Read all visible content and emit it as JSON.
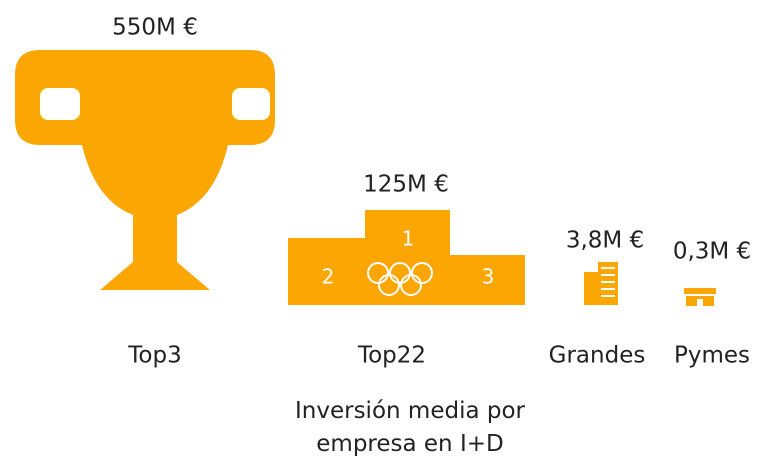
{
  "chart_data": {
    "type": "pictogram",
    "title": "Inversión media por empresa en I+D",
    "categories": [
      "Top3",
      "Top22",
      "Grandes",
      "Pymes"
    ],
    "values": [
      550,
      125,
      3.8,
      0.3
    ],
    "value_labels": [
      "550M €",
      "125M €",
      "3,8M €",
      "0,3M €"
    ],
    "podium_labels": [
      "1",
      "2",
      "3"
    ],
    "color": "#fca604"
  }
}
